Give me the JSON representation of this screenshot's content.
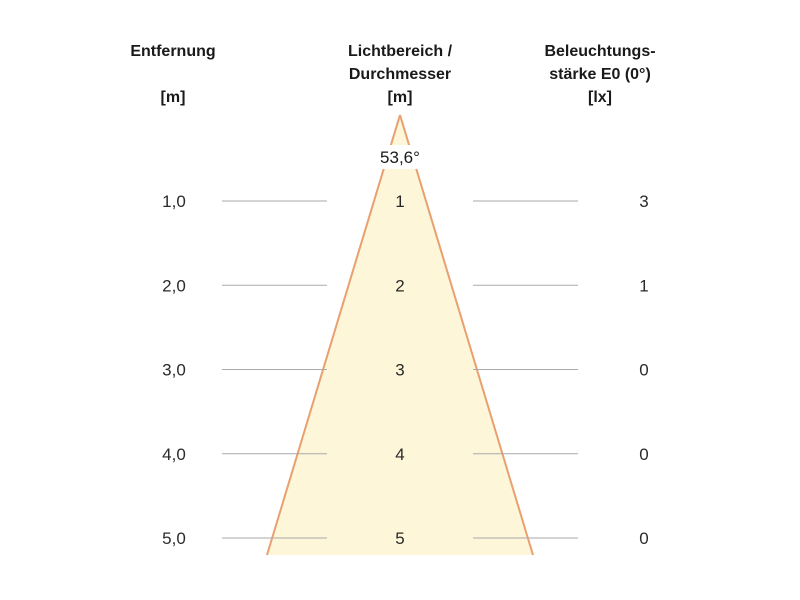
{
  "headers": {
    "distance": {
      "line1": "Entfernung",
      "line2": "",
      "unit": "[m]"
    },
    "diameter": {
      "line1": "Lichtbereich /",
      "line2": "Durchmesser",
      "unit": "[m]"
    },
    "illuminance": {
      "line1": "Beleuchtungs-",
      "line2": "stärke E0 (0°)",
      "unit": "[lx]"
    }
  },
  "beam_angle": "53,6°",
  "colors": {
    "cone_fill": "#fdf6d8",
    "cone_edge": "#e8a070",
    "guide_line": "#aaaaaa",
    "text": "#1a1a1a"
  },
  "rows": [
    {
      "distance": "1,0",
      "diameter": "1",
      "illuminance": "3"
    },
    {
      "distance": "2,0",
      "diameter": "2",
      "illuminance": "1"
    },
    {
      "distance": "3,0",
      "diameter": "3",
      "illuminance": "0"
    },
    {
      "distance": "4,0",
      "diameter": "4",
      "illuminance": "0"
    },
    {
      "distance": "5,0",
      "diameter": "5",
      "illuminance": "0"
    }
  ]
}
